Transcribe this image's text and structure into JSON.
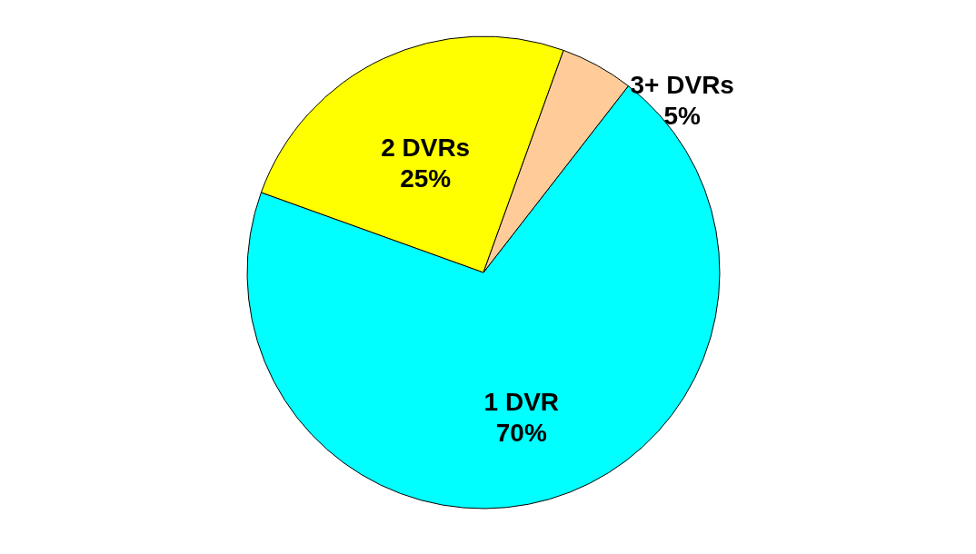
{
  "chart_data": {
    "type": "pie",
    "categories": [
      "1 DVR",
      "2 DVRs",
      "3+ DVRs"
    ],
    "values": [
      70,
      25,
      5
    ],
    "colors": [
      "#00ffff",
      "#ffff00",
      "#ffcc99"
    ],
    "value_labels": [
      "70%",
      "25%",
      "5%"
    ],
    "legend": false
  }
}
